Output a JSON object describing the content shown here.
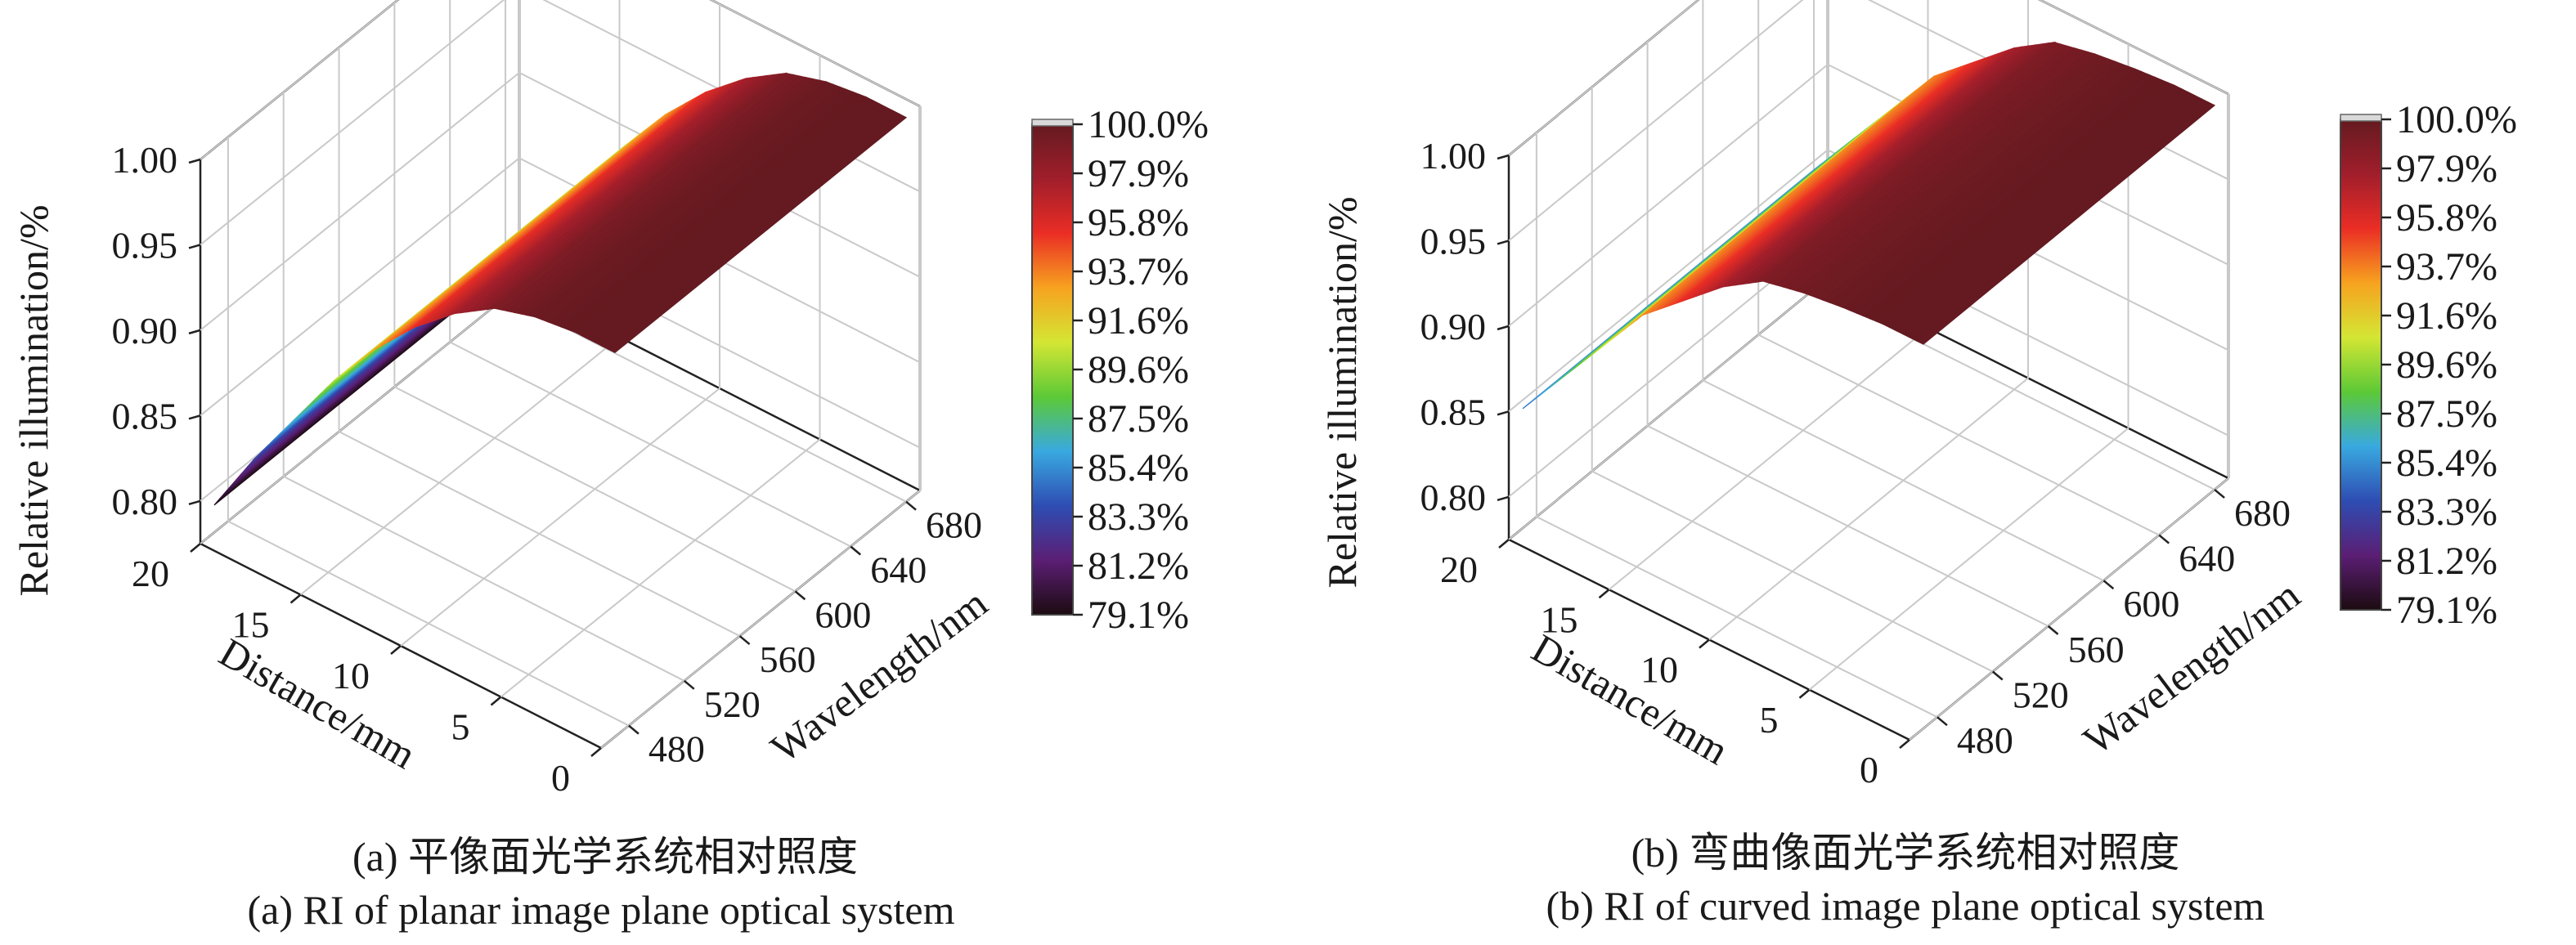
{
  "colorbar": {
    "labels": [
      "100.0%",
      "97.9%",
      "95.8%",
      "93.7%",
      "91.6%",
      "89.6%",
      "87.5%",
      "85.4%",
      "83.3%",
      "81.2%",
      "79.1%"
    ],
    "stops": [
      "#1c0b10",
      "#5b1e74",
      "#2e4db3",
      "#39a9e0",
      "#5cc936",
      "#d4e634",
      "#f7a21f",
      "#ea2d25",
      "#a01e2b",
      "#641a20"
    ]
  },
  "captions": {
    "a_cn": "(a) 平像面光学系统相对照度",
    "a_en": "(a) RI of planar image plane optical system",
    "b_cn": "(b) 弯曲像面光学系统相对照度",
    "b_en": "(b) RI of curved image plane optical system"
  },
  "chart_data": [
    {
      "type": "surface",
      "zlabel": "Relative illumination/%",
      "xlabel": "Distance/mm",
      "ylabel": "Wavelength/nm",
      "z_ticks": [
        "1.00",
        "0.95",
        "0.90",
        "0.85",
        "0.80"
      ],
      "x_ticks": [
        "20",
        "15",
        "10",
        "5",
        "0"
      ],
      "y_ticks": [
        "680",
        "640",
        "600",
        "560",
        "520",
        "480"
      ],
      "zlim": [
        0.775,
        1.0
      ],
      "xlim": [
        0,
        20
      ],
      "ylim": [
        460,
        690
      ],
      "colorbar_range": [
        0.791,
        1.0
      ],
      "distance_mm": [
        0,
        2,
        4,
        6,
        8,
        10,
        12,
        14,
        16,
        18,
        20
      ],
      "relative_illumination": [
        1.0,
        1.0,
        0.997,
        0.99,
        0.975,
        0.955,
        0.93,
        0.9,
        0.865,
        0.83,
        0.791
      ]
    },
    {
      "type": "surface",
      "zlabel": "Relative illumination/%",
      "xlabel": "Distance/mm",
      "ylabel": "Wavelength/nm",
      "z_ticks": [
        "1.00",
        "0.95",
        "0.90",
        "0.85",
        "0.80"
      ],
      "x_ticks": [
        "20",
        "15",
        "10",
        "5",
        "0"
      ],
      "y_ticks": [
        "680",
        "640",
        "600",
        "560",
        "520",
        "480"
      ],
      "zlim": [
        0.775,
        1.0
      ],
      "xlim": [
        0,
        20
      ],
      "ylim": [
        460,
        690
      ],
      "colorbar_range": [
        0.791,
        1.0
      ],
      "distance_mm": [
        0,
        2,
        4,
        6,
        8,
        10,
        12,
        14,
        16,
        18,
        20
      ],
      "relative_illumination": [
        1.0,
        1.0,
        0.998,
        0.995,
        0.99,
        0.975,
        0.955,
        0.935,
        0.905,
        0.875,
        0.845
      ]
    }
  ]
}
